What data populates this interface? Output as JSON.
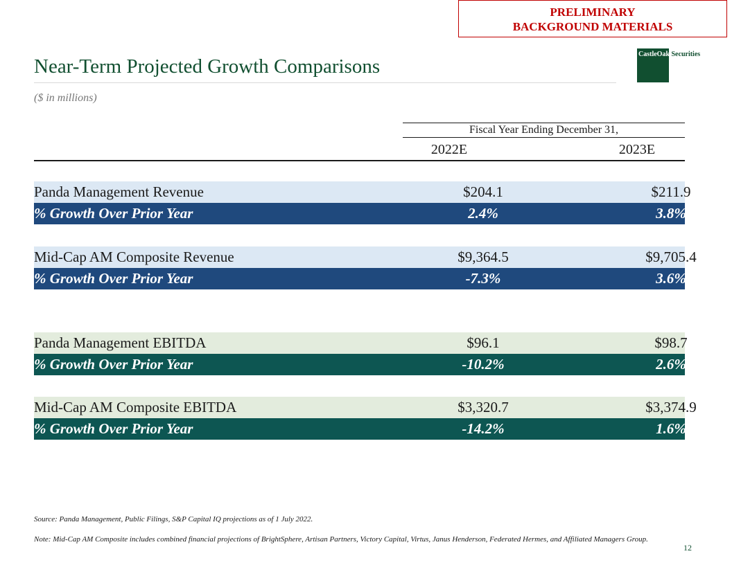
{
  "banner": {
    "line1": "PRELIMINARY",
    "line2": "BACKGROUND MATERIALS"
  },
  "logo": {
    "brand": "CastleOak",
    "suffix": " Securities"
  },
  "title": "Near-Term Projected Growth Comparisons",
  "subtitle": "($ in millions)",
  "table": {
    "header": "Fiscal Year Ending December 31,",
    "years": [
      "2022E",
      "2023E"
    ],
    "rows": [
      {
        "label": "Panda Management Revenue",
        "y2022": "$204.1",
        "y2023": "$211.9"
      },
      {
        "label": "% Growth Over Prior Year",
        "y2022": "2.4%",
        "y2023": "3.8%"
      },
      {
        "label": "Mid-Cap AM Composite Revenue",
        "y2022": "$9,364.5",
        "y2023": "$9,705.4"
      },
      {
        "label": "% Growth Over Prior Year",
        "y2022": "-7.3%",
        "y2023": "3.6%"
      },
      {
        "label": "Panda Management EBITDA",
        "y2022": "$96.1",
        "y2023": "$98.7"
      },
      {
        "label": "% Growth Over Prior Year",
        "y2022": "-10.2%",
        "y2023": "2.6%"
      },
      {
        "label": "Mid-Cap AM Composite EBITDA",
        "y2022": "$3,320.7",
        "y2023": "$3,374.9"
      },
      {
        "label": "% Growth Over Prior Year",
        "y2022": "-14.2%",
        "y2023": "1.6%"
      }
    ]
  },
  "source": "Source: Panda Management, Public Filings, S&P Capital IQ projections as of 1 July 2022.",
  "note": "Note: Mid-Cap AM Composite includes combined financial projections of BrightSphere, Artisan Partners, Victory Capital, Virtus, Janus Henderson, Federated Hermes, and Affiliated Managers Group.",
  "page_number": "12",
  "colors": {
    "brand_green": "#114f30",
    "banner_red": "#c00000",
    "dark_blue": "#1f497d",
    "light_blue": "#dce8f4",
    "dark_green": "#0d5652",
    "light_green": "#e3ecdd"
  }
}
